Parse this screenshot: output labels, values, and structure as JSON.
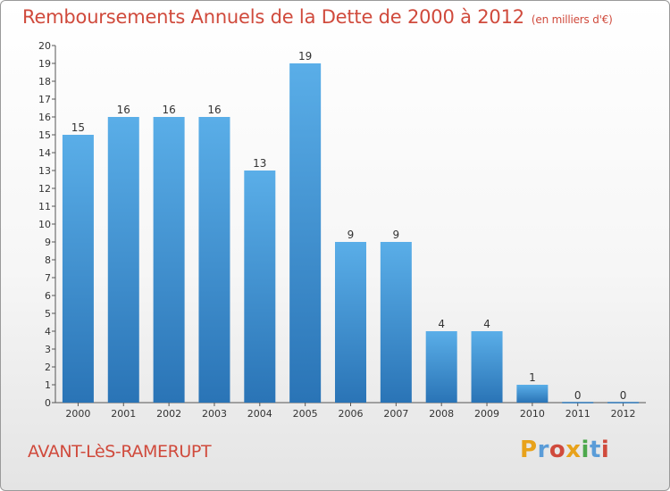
{
  "header": {
    "title": "Remboursements Annuels de la Dette de 2000 à 2012",
    "subtitle": "(en milliers d'€)"
  },
  "footer": {
    "commune": "AVANT-LèS-RAMERUPT",
    "logo_text": "Proxiti"
  },
  "colors": {
    "bar_top": "#5aaee8",
    "bar_bottom": "#2a74b6",
    "title": "#d04a3c",
    "logo": [
      "#e8a21b",
      "#5a9cd8",
      "#d04a3c",
      "#e8a21b",
      "#4ca84c",
      "#5a9cd8",
      "#d04a3c"
    ]
  },
  "chart_data": {
    "type": "bar",
    "title": "Remboursements Annuels de la Dette de 2000 à 2012",
    "subtitle": "(en milliers d'€)",
    "xlabel": "",
    "ylabel": "",
    "ylim": [
      0,
      20
    ],
    "yticks": [
      0,
      1,
      2,
      3,
      4,
      5,
      6,
      7,
      8,
      9,
      10,
      11,
      12,
      13,
      14,
      15,
      16,
      17,
      18,
      19,
      20
    ],
    "categories": [
      "2000",
      "2001",
      "2002",
      "2003",
      "2004",
      "2005",
      "2006",
      "2007",
      "2008",
      "2009",
      "2010",
      "2011",
      "2012"
    ],
    "values": [
      15,
      16,
      16,
      16,
      13,
      19,
      9,
      9,
      4,
      4,
      1,
      0,
      0
    ],
    "data_labels": [
      "15",
      "16",
      "16",
      "16",
      "13",
      "19",
      "9",
      "9",
      "4",
      "4",
      "1",
      "0",
      "0"
    ],
    "grid": false,
    "legend": "none"
  }
}
